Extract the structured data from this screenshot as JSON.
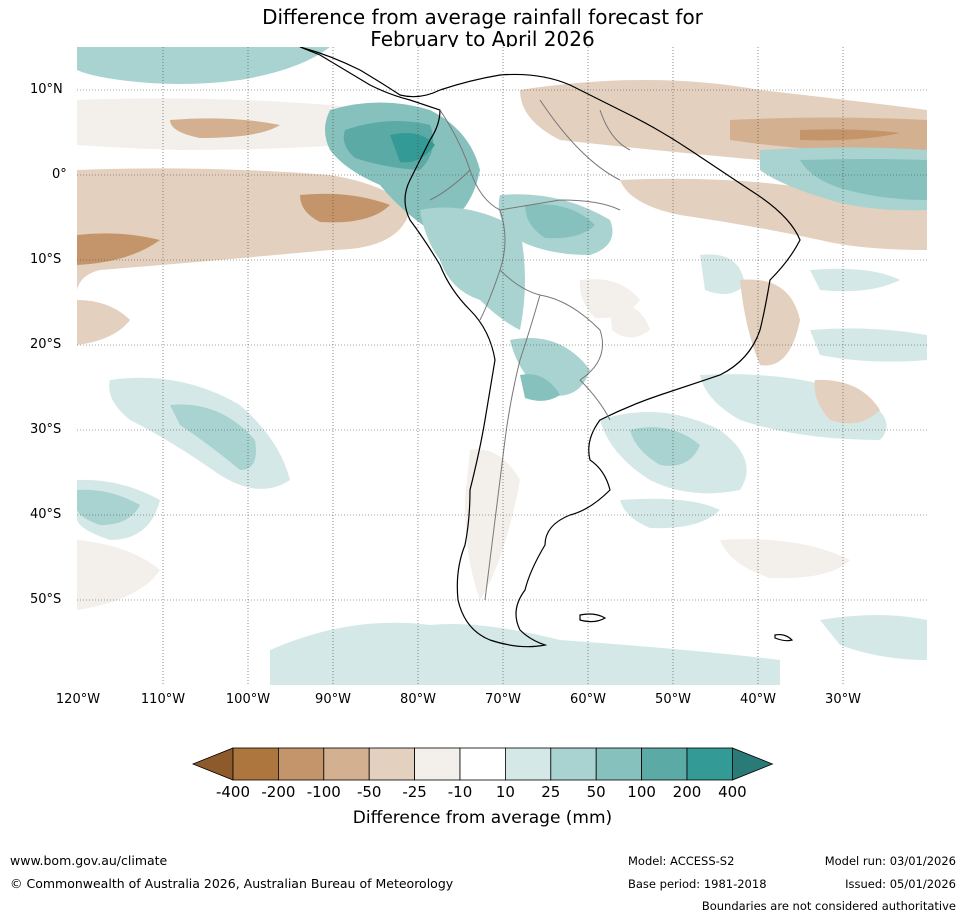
{
  "title": {
    "line1": "Difference from average rainfall forecast for",
    "line2": "February to April 2026"
  },
  "map": {
    "lat_labels": [
      "10°N",
      "0°",
      "10°S",
      "20°S",
      "30°S",
      "40°S",
      "50°S"
    ],
    "lon_labels": [
      "120°W",
      "110°W",
      "100°W",
      "90°W",
      "80°W",
      "70°W",
      "60°W",
      "50°W",
      "40°W",
      "30°W"
    ]
  },
  "colorbar": {
    "label": "Difference from average (mm)",
    "ticks": [
      "-400",
      "-200",
      "-100",
      "-50",
      "-25",
      "-10",
      "10",
      "25",
      "50",
      "100",
      "200",
      "400"
    ],
    "colors": [
      "#8e5a2c",
      "#ae763f",
      "#c4956a",
      "#d3b190",
      "#e4d0be",
      "#f3efea",
      "#ffffff",
      "#d4e9e7",
      "#a8d3d0",
      "#86c1bd",
      "#5caaa6",
      "#339a96",
      "#2a7a78"
    ]
  },
  "footer": {
    "url": "www.bom.gov.au/climate",
    "copyright": "© Commonwealth of Australia 2026, Australian Bureau of Meteorology",
    "model": "Model: ACCESS-S2",
    "base_period": "Base period: 1981-2018",
    "model_run": "Model run: 03/01/2026",
    "issued": "Issued: 05/01/2026",
    "disclaimer": "Boundaries are not considered authoritative"
  }
}
